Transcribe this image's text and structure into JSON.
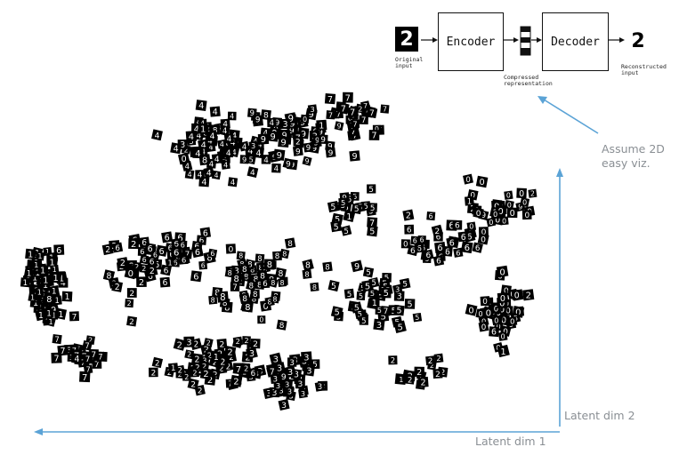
{
  "diagram": {
    "input_digit": "2",
    "output_digit": "2",
    "encoder_label": "Encoder",
    "decoder_label": "Decoder",
    "original_input_label": [
      "Original",
      "input"
    ],
    "compressed_label": [
      "Compressed",
      "representation"
    ],
    "reconstructed_label": [
      "Reconstructed",
      "input"
    ],
    "annotation_text": [
      "Assume 2D",
      "easy viz."
    ],
    "annotation_arrow_color": "#5ba3d6"
  },
  "axes": {
    "x_label": "Latent dim 1",
    "y_label": "Latent dim 2",
    "axis_color": "#5ba3d6",
    "label_color": "#8a8f94"
  },
  "scatter": {
    "digits": [
      "0",
      "1",
      "2",
      "3",
      "4",
      "5",
      "6",
      "7",
      "8",
      "9"
    ],
    "colors": {
      "tile": "#000000",
      "glyph": "#ffffff"
    }
  }
}
